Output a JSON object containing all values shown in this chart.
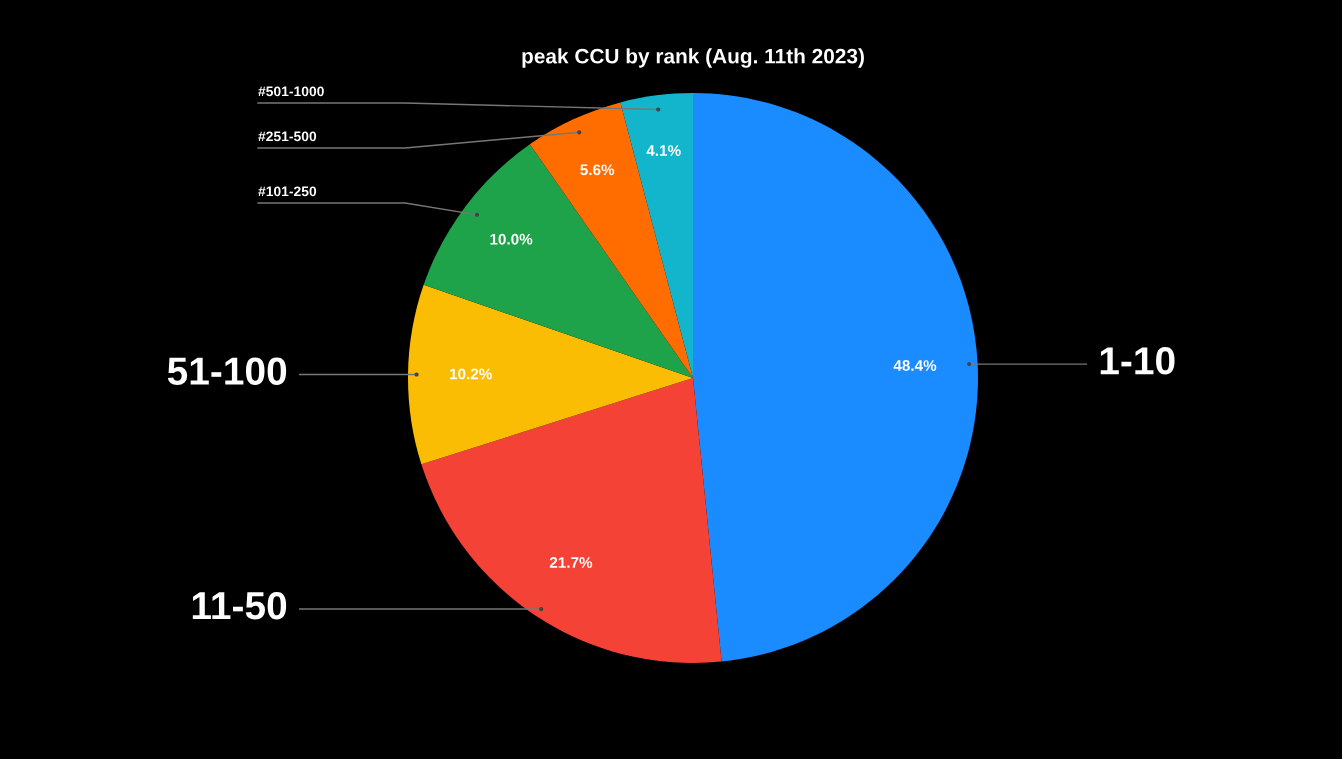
{
  "chart_data": {
    "type": "pie",
    "title": "peak CCU by rank (Aug. 11th 2023)",
    "categories": [
      "1-10",
      "11-50",
      "51-100",
      "#101-250",
      "#251-500",
      "#501-1000"
    ],
    "values": [
      48.4,
      21.7,
      10.2,
      10.0,
      5.6,
      4.1
    ],
    "colors": [
      "#1a8cff",
      "#f44336",
      "#fbbc04",
      "#1fa34a",
      "#ff6d01",
      "#12b5cb"
    ],
    "value_labels": [
      "48.4%",
      "21.7%",
      "10.2%",
      "10.0%",
      "5.6%",
      "4.1%"
    ],
    "legend": false
  }
}
